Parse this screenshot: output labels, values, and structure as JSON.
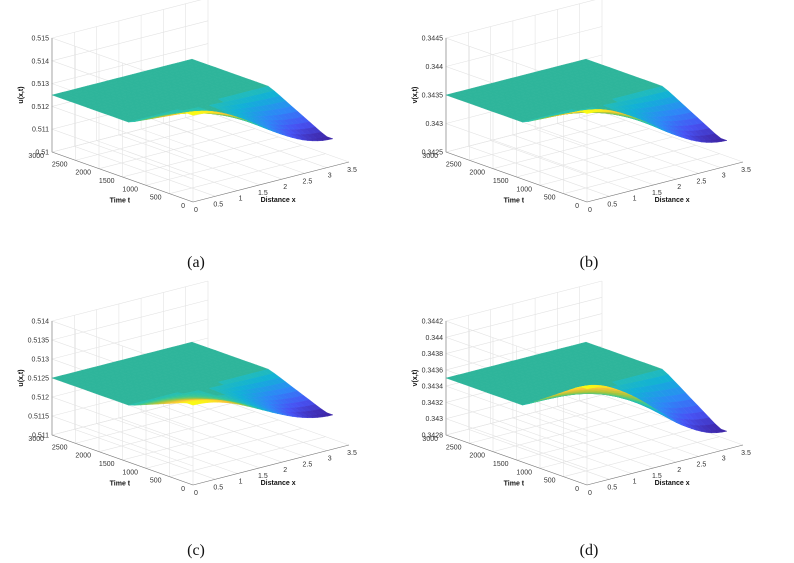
{
  "chart_data": [
    {
      "panel": "a",
      "caption": "(a)",
      "type": "surface",
      "zlabel": "u(x,t)",
      "xlabel": "Distance x",
      "ylabel": "Time t",
      "xlim": [
        0,
        3.5
      ],
      "ylim": [
        0,
        3000
      ],
      "zlim": [
        0.51,
        0.515
      ],
      "xticks": [
        "0",
        "0.5",
        "1",
        "1.5",
        "2",
        "2.5",
        "3",
        "3.5"
      ],
      "yticks": [
        "0",
        "500",
        "1000",
        "1500",
        "2000",
        "2500",
        "3000"
      ],
      "zticks": [
        "0.51",
        "0.511",
        "0.512",
        "0.513",
        "0.514",
        "0.515"
      ],
      "plateau": 0.5125,
      "amplitude": 0.0013,
      "colormap": "parula"
    },
    {
      "panel": "b",
      "caption": "(b)",
      "type": "surface",
      "zlabel": "v(x,t)",
      "xlabel": "Distance x",
      "ylabel": "Time t",
      "xlim": [
        0,
        3.5
      ],
      "ylim": [
        0,
        3000
      ],
      "zlim": [
        0.3425,
        0.3445
      ],
      "xticks": [
        "0",
        "0.5",
        "1",
        "1.5",
        "2",
        "2.5",
        "3",
        "3.5"
      ],
      "yticks": [
        "0",
        "500",
        "1000",
        "1500",
        "2000",
        "2500",
        "3000"
      ],
      "zticks": [
        "0.3425",
        "0.343",
        "0.3435",
        "0.344",
        "0.3445"
      ],
      "plateau": 0.3435,
      "amplitude": 0.00055,
      "colormap": "parula"
    },
    {
      "panel": "c",
      "caption": "(c)",
      "type": "surface",
      "zlabel": "u(x,t)",
      "xlabel": "Distance x",
      "ylabel": "Time t",
      "xlim": [
        0,
        3.5
      ],
      "ylim": [
        0,
        3000
      ],
      "zlim": [
        0.511,
        0.514
      ],
      "xticks": [
        "0",
        "0.5",
        "1",
        "1.5",
        "2",
        "2.5",
        "3",
        "3.5"
      ],
      "yticks": [
        "0",
        "500",
        "1000",
        "1500",
        "2000",
        "2500",
        "3000"
      ],
      "zticks": [
        "0.511",
        "0.5115",
        "0.512",
        "0.5125",
        "0.513",
        "0.5135",
        "0.514"
      ],
      "plateau": 0.5125,
      "amplitude": 0.0006,
      "colormap": "parula"
    },
    {
      "panel": "d",
      "caption": "(d)",
      "type": "surface",
      "zlabel": "v(x,t)",
      "xlabel": "Distance x",
      "ylabel": "Time t",
      "xlim": [
        0,
        3.5
      ],
      "ylim": [
        0,
        3000
      ],
      "zlim": [
        0.3428,
        0.3442
      ],
      "xticks": [
        "0",
        "0.5",
        "1",
        "1.5",
        "2",
        "2.5",
        "3",
        "3.5"
      ],
      "yticks": [
        "0",
        "500",
        "1000",
        "1500",
        "2000",
        "2500",
        "3000"
      ],
      "zticks": [
        "0.3428",
        "0.343",
        "0.3432",
        "0.3434",
        "0.3436",
        "0.3438",
        "0.344",
        "0.3442"
      ],
      "plateau": 0.3435,
      "amplitude": 0.00048,
      "colormap": "parula"
    }
  ]
}
